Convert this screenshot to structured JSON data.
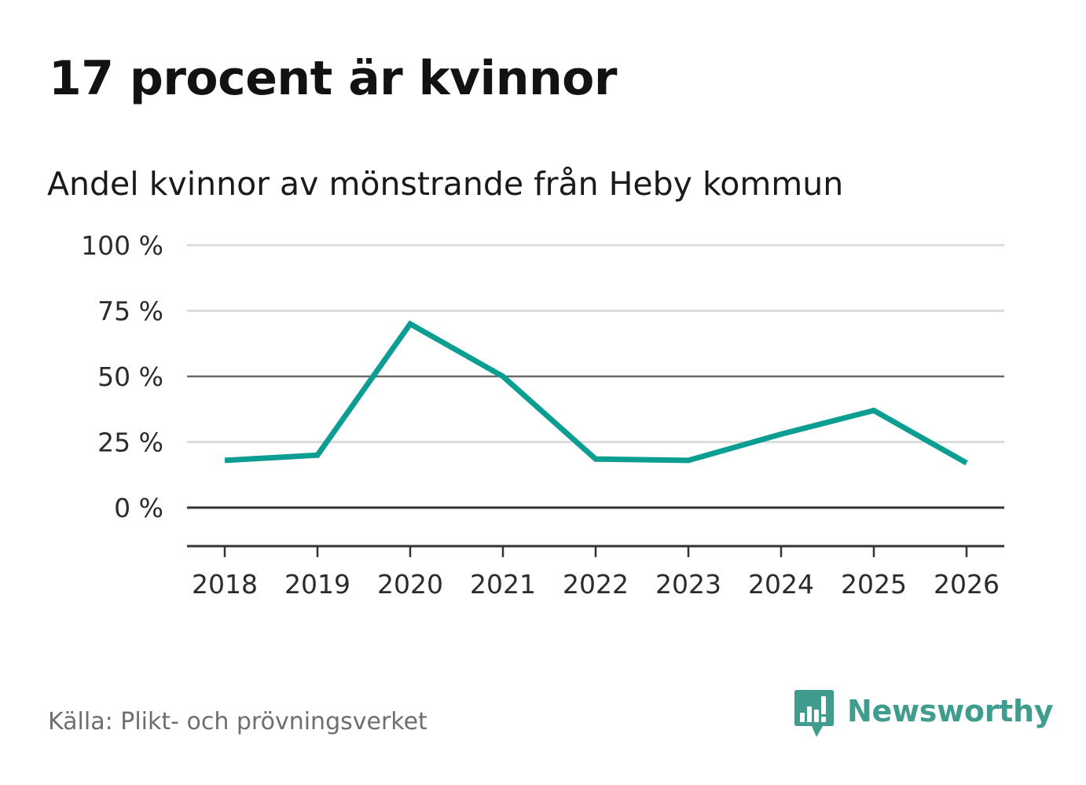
{
  "header": {
    "title": "17 procent är kvinnor"
  },
  "chart_data": {
    "type": "line",
    "title": "17 procent är kvinnor",
    "subtitle": "Andel kvinnor av mönstrande från Heby kommun",
    "xlabel": "",
    "ylabel": "",
    "categories": [
      "2018",
      "2019",
      "2020",
      "2021",
      "2022",
      "2023",
      "2024",
      "2025",
      "2026"
    ],
    "series": [
      {
        "name": "Andel kvinnor",
        "values": [
          18,
          20,
          70,
          50,
          18.5,
          18,
          28,
          37,
          17
        ]
      }
    ],
    "ylim": [
      -15,
      100
    ],
    "yticks": [
      0,
      25,
      50,
      75,
      100
    ],
    "ytick_labels": [
      "0 %",
      "25 %",
      "50 %",
      "75 %",
      "100 %"
    ],
    "grid": true,
    "legend": "none",
    "line_color": "#0d9e93",
    "grid_color": "#dcdcdc",
    "midline_color": "#6a6a6a",
    "baseline_color": "#333333"
  },
  "footer": {
    "source": "Källa: Plikt- och prövningsverket",
    "brand": "Newsworthy",
    "brand_color": "#3f9c8f",
    "brand_icon": "newsworthy-chat-bars-icon"
  }
}
